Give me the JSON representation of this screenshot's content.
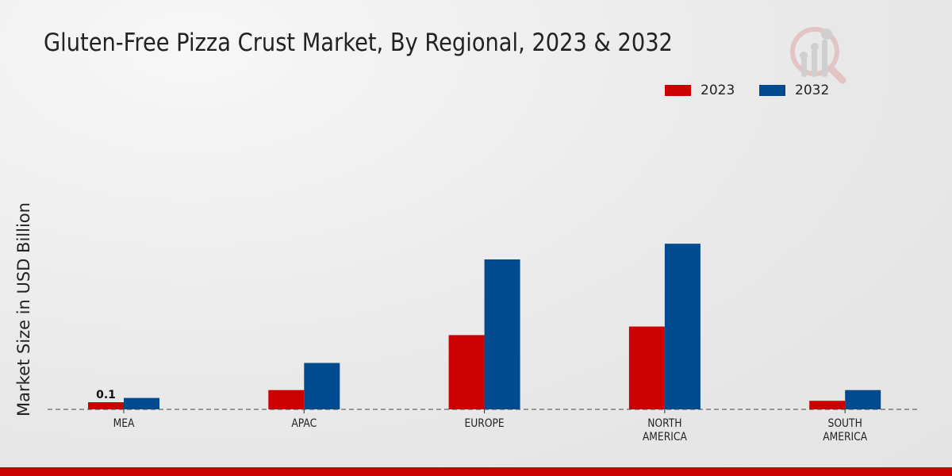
{
  "chart_data": {
    "type": "bar",
    "title": "Gluten-Free Pizza Crust Market, By Regional, 2023 & 2032",
    "xlabel": "",
    "ylabel": "Market Size in USD Billion",
    "categories": [
      "MEA",
      "APAC",
      "EUROPE",
      "NORTH\nAMERICA",
      "SOUTH\nAMERICA"
    ],
    "series": [
      {
        "name": "2023",
        "color": "#cc0000",
        "values": [
          0.1,
          0.27,
          1.04,
          1.16,
          0.12
        ]
      },
      {
        "name": "2032",
        "color": "#004a8f",
        "values": [
          0.16,
          0.65,
          2.1,
          2.32,
          0.27
        ]
      }
    ],
    "data_labels": [
      {
        "series": 0,
        "index": 0,
        "text": "0.1"
      }
    ],
    "ylim": [
      0,
      3
    ],
    "grid": false,
    "legend": "top-right"
  }
}
